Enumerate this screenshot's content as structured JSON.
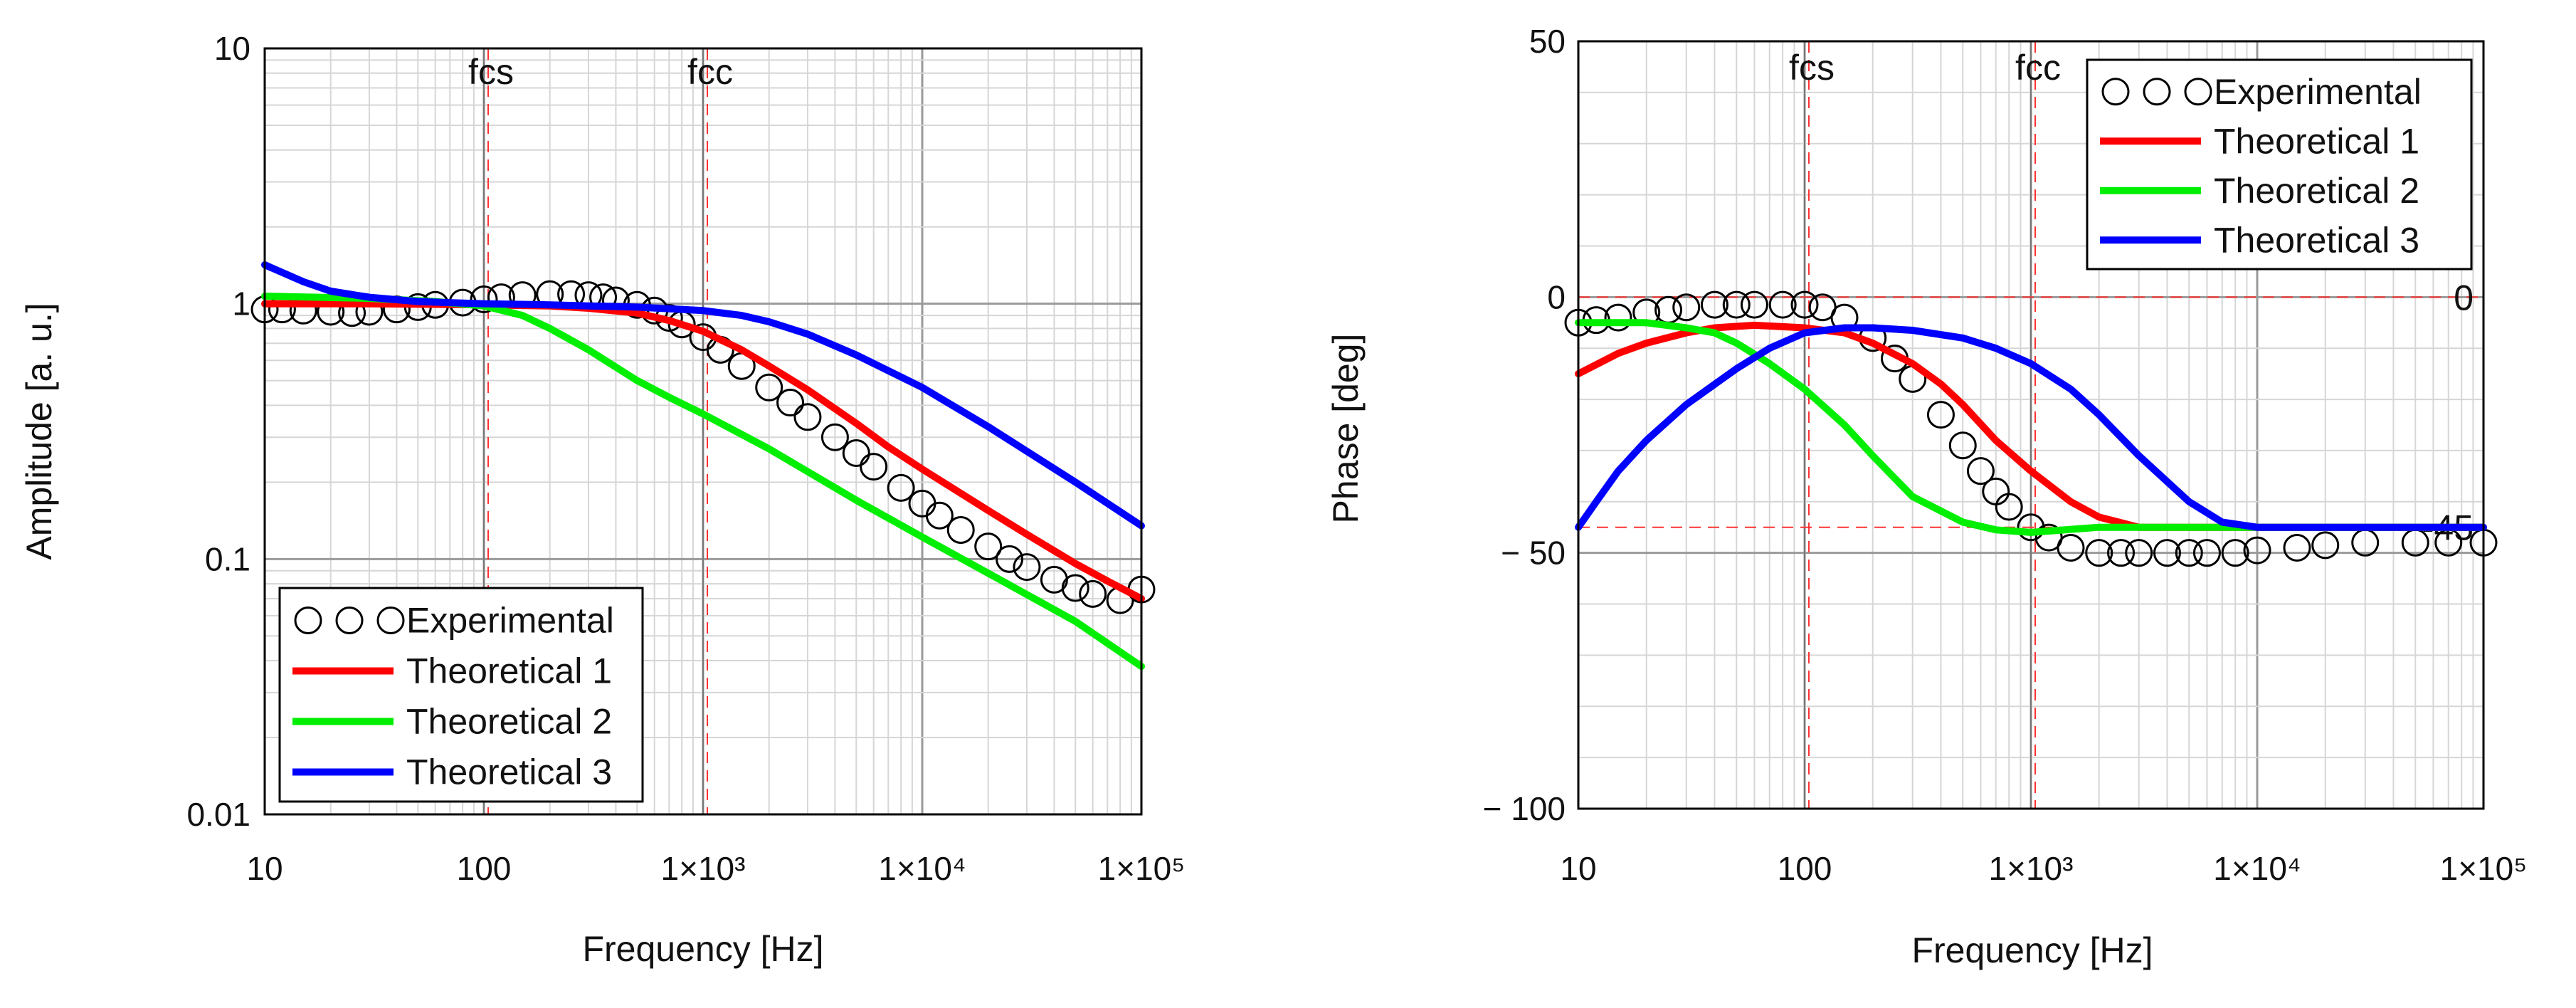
{
  "chart_data": [
    {
      "type": "line",
      "title": "",
      "xlabel": "Frequency [Hz]",
      "ylabel": "Amplitude [a. u.]",
      "xscale": "log",
      "yscale": "log",
      "xlim": [
        10,
        100000
      ],
      "ylim": [
        0.01,
        10
      ],
      "grid": true,
      "x_tick_labels": [
        "10",
        "100",
        "1×10³",
        "1×10⁴",
        "1×10⁵"
      ],
      "y_tick_labels": [
        "10",
        "1",
        "0.1",
        "0.01"
      ],
      "legend_position": "bottom-left",
      "markers": [
        {
          "label": "fcs",
          "x": 100
        },
        {
          "label": "fcc",
          "x": 1000
        }
      ],
      "series": [
        {
          "name": "Experimental",
          "style": "circles",
          "color": "#000000",
          "x": [
            10,
            12,
            15,
            20,
            25,
            30,
            40,
            50,
            60,
            80,
            100,
            120,
            150,
            200,
            250,
            300,
            350,
            400,
            500,
            600,
            700,
            800,
            1000,
            1200,
            1500,
            2000,
            2500,
            3000,
            4000,
            5000,
            6000,
            8000,
            10000,
            12000,
            15000,
            20000,
            25000,
            30000,
            40000,
            50000,
            60000,
            80000,
            100000
          ],
          "values": [
            0.95,
            0.95,
            0.94,
            0.93,
            0.92,
            0.93,
            0.95,
            0.97,
            0.99,
            1.01,
            1.04,
            1.06,
            1.08,
            1.09,
            1.09,
            1.08,
            1.06,
            1.03,
            0.99,
            0.94,
            0.88,
            0.83,
            0.74,
            0.66,
            0.57,
            0.47,
            0.41,
            0.36,
            0.3,
            0.26,
            0.23,
            0.19,
            0.165,
            0.148,
            0.13,
            0.112,
            0.1,
            0.093,
            0.083,
            0.077,
            0.073,
            0.069,
            0.076
          ]
        },
        {
          "name": "Theoretical 1",
          "style": "line",
          "color": "#ff0000",
          "x": [
            10,
            30,
            100,
            200,
            300,
            500,
            700,
            1000,
            1500,
            2000,
            3000,
            5000,
            7000,
            10000,
            20000,
            30000,
            50000,
            70000,
            100000
          ],
          "values": [
            1.0,
            1.0,
            0.99,
            0.98,
            0.96,
            0.92,
            0.86,
            0.78,
            0.66,
            0.57,
            0.46,
            0.34,
            0.275,
            0.225,
            0.155,
            0.125,
            0.096,
            0.082,
            0.07
          ]
        },
        {
          "name": "Theoretical 2",
          "style": "line",
          "color": "#00ee00",
          "x": [
            10,
            30,
            60,
            100,
            150,
            200,
            300,
            500,
            700,
            1000,
            2000,
            3000,
            5000,
            10000,
            20000,
            50000,
            100000
          ],
          "values": [
            1.07,
            1.05,
            1.02,
            0.98,
            0.9,
            0.8,
            0.66,
            0.5,
            0.43,
            0.37,
            0.27,
            0.22,
            0.17,
            0.122,
            0.088,
            0.057,
            0.038
          ]
        },
        {
          "name": "Theoretical 3",
          "style": "line",
          "color": "#0000ff",
          "x": [
            10,
            15,
            20,
            30,
            50,
            100,
            200,
            300,
            500,
            1000,
            1500,
            2000,
            3000,
            5000,
            10000,
            20000,
            50000,
            100000
          ],
          "values": [
            1.42,
            1.22,
            1.12,
            1.06,
            1.02,
            1.0,
            0.99,
            0.98,
            0.97,
            0.94,
            0.9,
            0.85,
            0.76,
            0.63,
            0.47,
            0.33,
            0.2,
            0.135
          ]
        }
      ]
    },
    {
      "type": "line",
      "title": "",
      "xlabel": "Frequency [Hz]",
      "ylabel": "Phase [deg]",
      "xscale": "log",
      "yscale": "linear",
      "xlim": [
        10,
        100000
      ],
      "ylim": [
        -100,
        50
      ],
      "grid": true,
      "x_tick_labels": [
        "10",
        "100",
        "1×10³",
        "1×10⁴",
        "1×10⁵"
      ],
      "y_tick_labels": [
        "50",
        "0",
        "− 50",
        "− 100"
      ],
      "legend_position": "top-right",
      "markers": [
        {
          "label": "fcs",
          "x": 100
        },
        {
          "label": "fcc",
          "x": 1000
        }
      ],
      "reference_lines": [
        {
          "label": "0",
          "y": 0
        },
        {
          "label": "-45",
          "y": -45
        }
      ],
      "series": [
        {
          "name": "Experimental",
          "style": "circles",
          "color": "#000000",
          "x": [
            10,
            12,
            15,
            20,
            25,
            30,
            40,
            50,
            60,
            80,
            100,
            120,
            150,
            200,
            250,
            300,
            400,
            500,
            600,
            700,
            800,
            1000,
            1200,
            1500,
            2000,
            2500,
            3000,
            4000,
            5000,
            6000,
            8000,
            10000,
            15000,
            20000,
            30000,
            50000,
            70000,
            100000
          ],
          "values": [
            -5,
            -4.5,
            -4,
            -3,
            -2.5,
            -2,
            -1.5,
            -1.5,
            -1.5,
            -1.5,
            -1.5,
            -2,
            -4,
            -8,
            -12,
            -16,
            -23,
            -29,
            -34,
            -38,
            -41,
            -45,
            -47,
            -49,
            -50,
            -50,
            -50,
            -50,
            -50,
            -50,
            -50,
            -49.5,
            -49,
            -48.5,
            -48,
            -48,
            -48,
            -48
          ]
        },
        {
          "name": "Theoretical 1",
          "style": "line",
          "color": "#ff0000",
          "x": [
            10,
            15,
            20,
            30,
            40,
            60,
            100,
            150,
            200,
            300,
            400,
            500,
            700,
            1000,
            1500,
            2000,
            3000,
            5000,
            10000,
            30000,
            100000
          ],
          "values": [
            -15,
            -11,
            -9,
            -7,
            -6,
            -5.5,
            -6,
            -7,
            -9,
            -13,
            -17,
            -21,
            -28,
            -34,
            -40,
            -43,
            -45,
            -45,
            -45,
            -45,
            -45
          ]
        },
        {
          "name": "Theoretical 2",
          "style": "line",
          "color": "#00ee00",
          "x": [
            10,
            15,
            20,
            30,
            40,
            50,
            70,
            100,
            150,
            200,
            300,
            500,
            700,
            1000,
            2000,
            5000,
            10000,
            100000
          ],
          "values": [
            -5,
            -5,
            -5,
            -6,
            -7,
            -9,
            -13,
            -18,
            -25,
            -31,
            -39,
            -44,
            -45.5,
            -46,
            -45,
            -45,
            -45,
            -45
          ]
        },
        {
          "name": "Theoretical 3",
          "style": "line",
          "color": "#0000ff",
          "x": [
            10,
            12,
            15,
            20,
            30,
            50,
            70,
            100,
            150,
            200,
            300,
            500,
            700,
            1000,
            1500,
            2000,
            3000,
            5000,
            7000,
            10000,
            20000,
            50000,
            100000
          ],
          "values": [
            -45,
            -40,
            -34,
            -28,
            -21,
            -14,
            -10,
            -7,
            -6,
            -6,
            -6.5,
            -8,
            -10,
            -13,
            -18,
            -23,
            -31,
            -40,
            -44,
            -45,
            -45,
            -45,
            -45
          ]
        }
      ]
    }
  ]
}
